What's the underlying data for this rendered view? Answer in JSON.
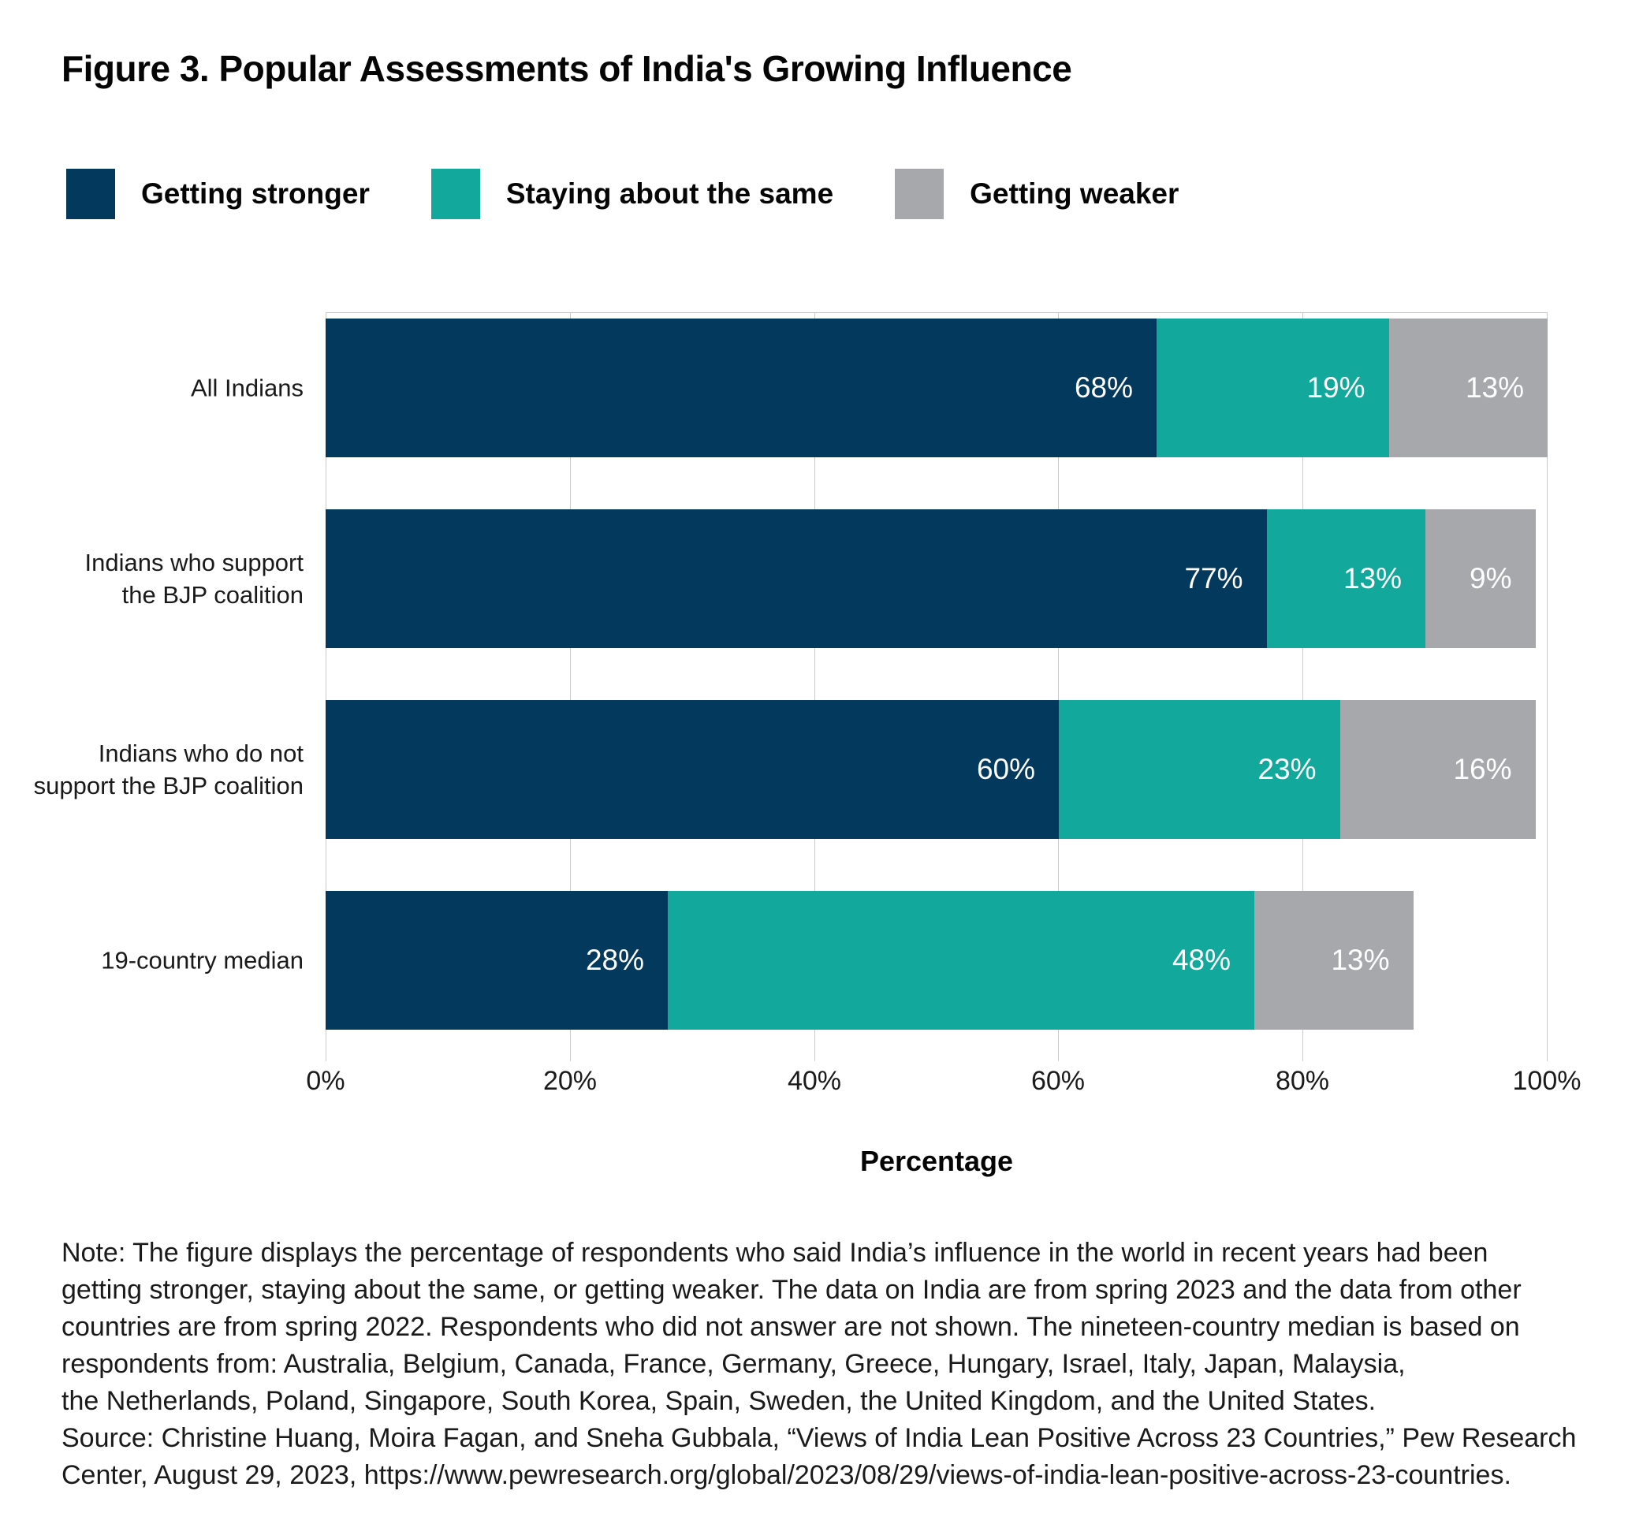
{
  "title": "Figure 3. Popular Assessments of India's Growing Influence",
  "legend": [
    {
      "label": "Getting stronger",
      "color": "#04395E"
    },
    {
      "label": "Staying about the same",
      "color": "#12A89C"
    },
    {
      "label": "Getting weaker",
      "color": "#A6A8AB"
    }
  ],
  "chart_data": {
    "type": "bar",
    "orientation": "horizontal",
    "stacked": true,
    "categories": [
      "All Indians",
      "Indians who support\nthe BJP coalition",
      "Indians who do not\nsupport the BJP coalition",
      "19-country median"
    ],
    "series": [
      {
        "name": "Getting stronger",
        "color": "#04395E",
        "values": [
          68,
          77,
          60,
          28
        ]
      },
      {
        "name": "Staying about the same",
        "color": "#12A89C",
        "values": [
          19,
          13,
          23,
          48
        ]
      },
      {
        "name": "Getting weaker",
        "color": "#A6A8AB",
        "values": [
          13,
          9,
          16,
          13
        ]
      }
    ],
    "xlabel": "Percentage",
    "x_ticks": [
      "0%",
      "20%",
      "40%",
      "60%",
      "80%",
      "100%"
    ],
    "xlim": [
      0,
      100
    ],
    "grid": "vertical",
    "legend_position": "top",
    "value_label_format": "{v}%",
    "value_label_color": "#ffffff",
    "gridline_color": "#c9cacb"
  },
  "note": {
    "lines": [
      "Note: The figure displays the percentage of respondents who said India’s influence in the world in recent years had been",
      "getting stronger, staying about the same, or getting weaker. The data on India are from spring 2023 and the data from other",
      "countries are from spring 2022. Respondents who did not answer are not shown. The nineteen-country median is based on",
      "respondents from: Australia, Belgium, Canada, France, Germany, Greece, Hungary, Israel, Italy, Japan, Malaysia,",
      "the Netherlands, Poland, Singapore, South Korea, Spain, Sweden, the United Kingdom, and the United States.",
      "Source: Christine Huang, Moira Fagan, and Sneha Gubbala, “Views of India Lean Positive Across 23 Countries,” Pew Research",
      "Center, August 29, 2023, https://www.pewresearch.org/global/2023/08/29/views-of-india-lean-positive-across-23-countries."
    ]
  }
}
